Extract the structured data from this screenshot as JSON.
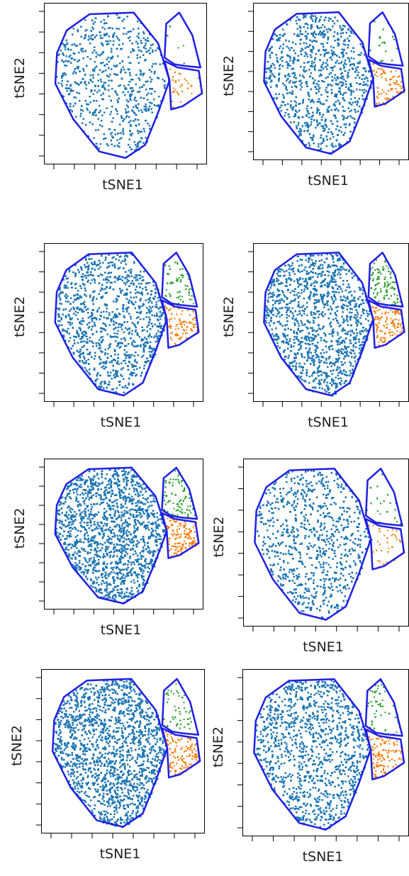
{
  "chart_data": [
    {
      "type": "scatter",
      "xlabel": "tSNE1",
      "ylabel": "tSNE2",
      "grid": false,
      "series": [
        {
          "color": "#1f77b4",
          "points": 1400
        },
        {
          "color": "#ff7f0e",
          "points": 70
        },
        {
          "color": "#2ca02c",
          "points": 12
        }
      ]
    },
    {
      "type": "scatter",
      "xlabel": "tSNE1",
      "ylabel": "tSNE2",
      "grid": false,
      "series": [
        {
          "color": "#1f77b4",
          "points": 1900
        },
        {
          "color": "#ff7f0e",
          "points": 170
        },
        {
          "color": "#2ca02c",
          "points": 45
        }
      ]
    },
    {
      "type": "scatter",
      "xlabel": "tSNE1",
      "ylabel": "tSNE2",
      "grid": false,
      "series": [
        {
          "color": "#1f77b4",
          "points": 2200
        },
        {
          "color": "#ff7f0e",
          "points": 190
        },
        {
          "color": "#2ca02c",
          "points": 150
        }
      ]
    },
    {
      "type": "scatter",
      "xlabel": "tSNE1",
      "ylabel": "tSNE2",
      "grid": false,
      "series": [
        {
          "color": "#1f77b4",
          "points": 2600
        },
        {
          "color": "#ff7f0e",
          "points": 280
        },
        {
          "color": "#2ca02c",
          "points": 220
        }
      ]
    },
    {
      "type": "scatter",
      "xlabel": "tSNE1",
      "ylabel": "tSNE2",
      "grid": false,
      "series": [
        {
          "color": "#1f77b4",
          "points": 3200
        },
        {
          "color": "#ff7f0e",
          "points": 320
        },
        {
          "color": "#2ca02c",
          "points": 200
        }
      ]
    },
    {
      "type": "scatter",
      "xlabel": "tSNE1",
      "ylabel": "tSNE2",
      "grid": false,
      "series": [
        {
          "color": "#1f77b4",
          "points": 1700
        },
        {
          "color": "#ff7f0e",
          "points": 75
        },
        {
          "color": "#2ca02c",
          "points": 45
        }
      ]
    },
    {
      "type": "scatter",
      "xlabel": "tSNE1",
      "ylabel": "tSNE2",
      "grid": false,
      "series": [
        {
          "color": "#1f77b4",
          "points": 3400
        },
        {
          "color": "#ff7f0e",
          "points": 260
        },
        {
          "color": "#2ca02c",
          "points": 110
        }
      ]
    },
    {
      "type": "scatter",
      "xlabel": "tSNE1",
      "ylabel": "tSNE2",
      "grid": false,
      "series": [
        {
          "color": "#1f77b4",
          "points": 2400
        },
        {
          "color": "#ff7f0e",
          "points": 260
        },
        {
          "color": "#2ca02c",
          "points": 120
        }
      ]
    }
  ]
}
